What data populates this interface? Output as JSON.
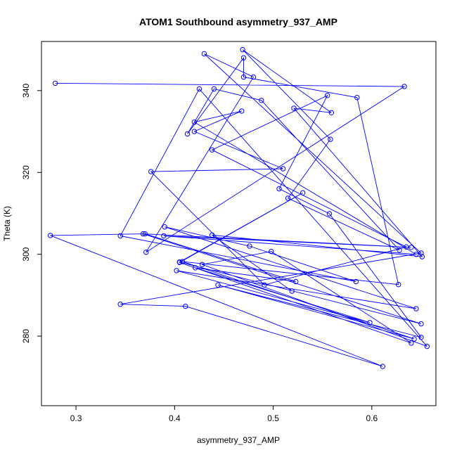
{
  "chart_data": {
    "type": "line",
    "title": "ATOM1 Southbound asymmetry_937_AMP",
    "xlabel": "asymmetry_937_AMP",
    "ylabel": "Theta (K)",
    "xlim": [
      0.265,
      0.665
    ],
    "ylim": [
      263,
      352
    ],
    "x_ticks": [
      0.3,
      0.4,
      0.5,
      0.6
    ],
    "x_tick_labels": [
      "0.3",
      "0.4",
      "0.5",
      "0.6"
    ],
    "y_ticks": [
      280,
      300,
      320,
      340
    ],
    "y_tick_labels": [
      "280",
      "300",
      "320",
      "340"
    ],
    "markers": "open-circle",
    "grid": false,
    "color": "#0000ff",
    "series": [
      {
        "x": [
          0.279,
          0.633,
          0.371,
          0.48,
          0.43,
          0.65,
          0.345,
          0.411,
          0.611,
          0.274,
          0.37,
          0.523,
          0.421,
          0.598,
          0.402,
          0.645,
          0.39,
          0.476,
          0.584,
          0.345,
          0.425,
          0.656,
          0.428,
          0.498,
          0.64,
          0.405,
          0.53,
          0.405,
          0.65,
          0.368,
          0.64,
          0.389,
          0.645,
          0.42,
          0.468,
          0.42,
          0.51,
          0.376,
          0.491,
          0.635,
          0.438,
          0.555,
          0.506,
          0.557,
          0.65,
          0.444,
          0.643,
          0.408,
          0.627,
          0.585,
          0.47,
          0.47,
          0.413,
          0.44,
          0.488,
          0.628,
          0.515,
          0.558,
          0.469,
          0.559,
          0.521,
          0.651,
          0.438,
          0.519
        ],
        "y": [
          341.8,
          341.0,
          300.5,
          343.3,
          349.0,
          300.3,
          287.8,
          287.3,
          272.6,
          304.6,
          305.0,
          293.3,
          296.7,
          283.3,
          296.0,
          286.7,
          306.7,
          302.0,
          293.3,
          304.5,
          340.4,
          277.5,
          297.5,
          300.7,
          278.3,
          298.0,
          315.0,
          298.1,
          283.0,
          305.0,
          301.7,
          304.5,
          300.0,
          332.3,
          335.0,
          330.0,
          320.9,
          320.2,
          292.5,
          301.8,
          325.5,
          338.8,
          316.0,
          309.9,
          279.7,
          292.5,
          279.3,
          298.2,
          292.6,
          338.3,
          343.3,
          348.0,
          329.4,
          340.4,
          337.6,
          301.0,
          313.7,
          328.1,
          350.0,
          334.6,
          335.7,
          299.4,
          304.7,
          291.0
        ]
      }
    ]
  }
}
